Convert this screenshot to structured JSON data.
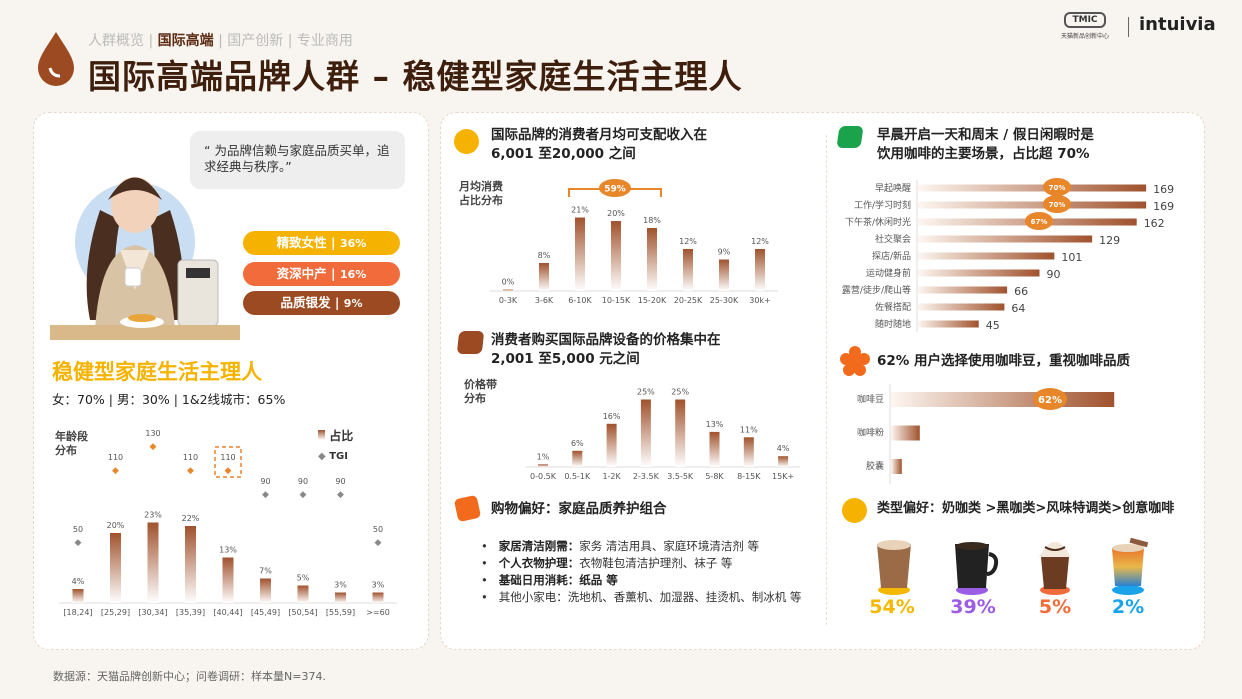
{
  "header": {
    "nav": [
      "人群概览",
      "国际高端",
      "国产创新",
      "专业商用"
    ],
    "nav_active": 1,
    "title": "国际高端品牌人群 – 稳健型家庭生活主理人",
    "logo_tmic": "TMIC",
    "logo_tmic_sub": "天猫新品创新中心",
    "logo_intuivia": "intuivia"
  },
  "persona": {
    "quote": "“  为品牌信赖与家庭品质买单，追求经典与秩序。”",
    "tags": [
      {
        "label": "精致女性",
        "value": "36%",
        "color": "#f5b300"
      },
      {
        "label": "资深中产",
        "value": "16%",
        "color": "#f26b3a"
      },
      {
        "label": "品质银发",
        "value": "9%",
        "color": "#9c4a22"
      }
    ],
    "name": "稳健型家庭生活主理人",
    "stats": "女：70% | 男：30%  | 1&2线城市：65%"
  },
  "age_chart": {
    "type": "bar",
    "ylabel": "年龄段\n分布",
    "legend": [
      "占比",
      "TGI"
    ],
    "categories": [
      "[18,24]",
      "[25,29]",
      "[30,34]",
      "[35,39]",
      "[40,44]",
      "[45,49]",
      "[50,54]",
      "[55,59]",
      ">=60"
    ],
    "series": [
      {
        "name": "占比",
        "values": [
          4,
          20,
          23,
          22,
          13,
          7,
          5,
          3,
          3
        ]
      },
      {
        "name": "TGI",
        "values": [
          50,
          110,
          130,
          110,
          110,
          90,
          90,
          90,
          50
        ]
      }
    ],
    "highlight_index": 4
  },
  "income": {
    "title": "国际品牌的消费者月均可支配收入在\n6,001 至20,000 之间",
    "chart_data": {
      "type": "bar",
      "ylabel": "月均消费\n占比分布",
      "categories": [
        "0-3K",
        "3-6K",
        "6-10K",
        "10-15K",
        "15-20K",
        "20-25K",
        "25-30K",
        "30k+"
      ],
      "values": [
        0,
        8,
        21,
        20,
        18,
        12,
        9,
        12
      ],
      "bracket_label": "59%"
    }
  },
  "price": {
    "title": "消费者购买国际品牌设备的价格集中在\n2,001 至5,000 元之间",
    "chart_data": {
      "type": "bar",
      "ylabel": "价格带\n分布",
      "categories": [
        "0-0.5K",
        "0.5-1K",
        "1-2K",
        "2-3.5K",
        "3.5-5K",
        "5-8K",
        "8-15K",
        "15K+"
      ],
      "values": [
        1,
        6,
        16,
        25,
        25,
        13,
        11,
        4
      ]
    }
  },
  "shopping": {
    "title": "购物偏好：家庭品质养护组合",
    "items": [
      {
        "k": "家居清洁刚需：",
        "v": "家务 清洁用具、家庭环境清洁剂 等"
      },
      {
        "k": "个人衣物护理：",
        "v": "衣物鞋包清洁护理剂、袜子 等"
      },
      {
        "k": "基础日用消耗：纸品 等",
        "v": ""
      },
      {
        "k": "",
        "v": "其他小家电：洗地机、香薰机、加湿器、挂烫机、制冰机 等"
      }
    ]
  },
  "scenes": {
    "title": "早晨开启一天和周末 / 假日闲暇时是\n饮用咖啡的主要场景，占比超 70%",
    "chart_data": {
      "type": "bar",
      "orientation": "horizontal",
      "categories": [
        "早起唤醒",
        "工作/学习时刻",
        "下午茶/休闲时光",
        "社交聚会",
        "探店/新品",
        "运动健身前",
        "露营/徒步/爬山等",
        "佐餐搭配",
        "随时随地"
      ],
      "values": [
        169,
        169,
        162,
        129,
        101,
        90,
        66,
        64,
        45
      ],
      "badges": [
        "70%",
        "70%",
        "67%"
      ]
    }
  },
  "beans": {
    "title": "62% 用户选择使用咖啡豆，重视咖啡品质",
    "chart_data": {
      "type": "bar",
      "orientation": "horizontal",
      "categories": [
        "咖啡豆",
        "咖啡粉",
        "胶囊"
      ],
      "values": [
        62,
        8,
        3
      ],
      "badge": "62%"
    }
  },
  "types": {
    "title": "类型偏好：奶咖类 >黑咖类>风味特调类>创意咖啡",
    "items": [
      {
        "icon": "latte-icon",
        "value": "54%",
        "color": "#f5b800"
      },
      {
        "icon": "black-coffee-icon",
        "value": "39%",
        "color": "#9b5de5"
      },
      {
        "icon": "frappe-icon",
        "value": "5%",
        "color": "#f26b3a"
      },
      {
        "icon": "creative-coffee-icon",
        "value": "2%",
        "color": "#1aa3e8"
      }
    ]
  },
  "footer": "数据源：天猫品牌创新中心；问卷调研：样本量N=374.",
  "colors": {
    "brown": "#a0522d",
    "orange": "#e8862a",
    "dark": "#3e1f0d"
  }
}
